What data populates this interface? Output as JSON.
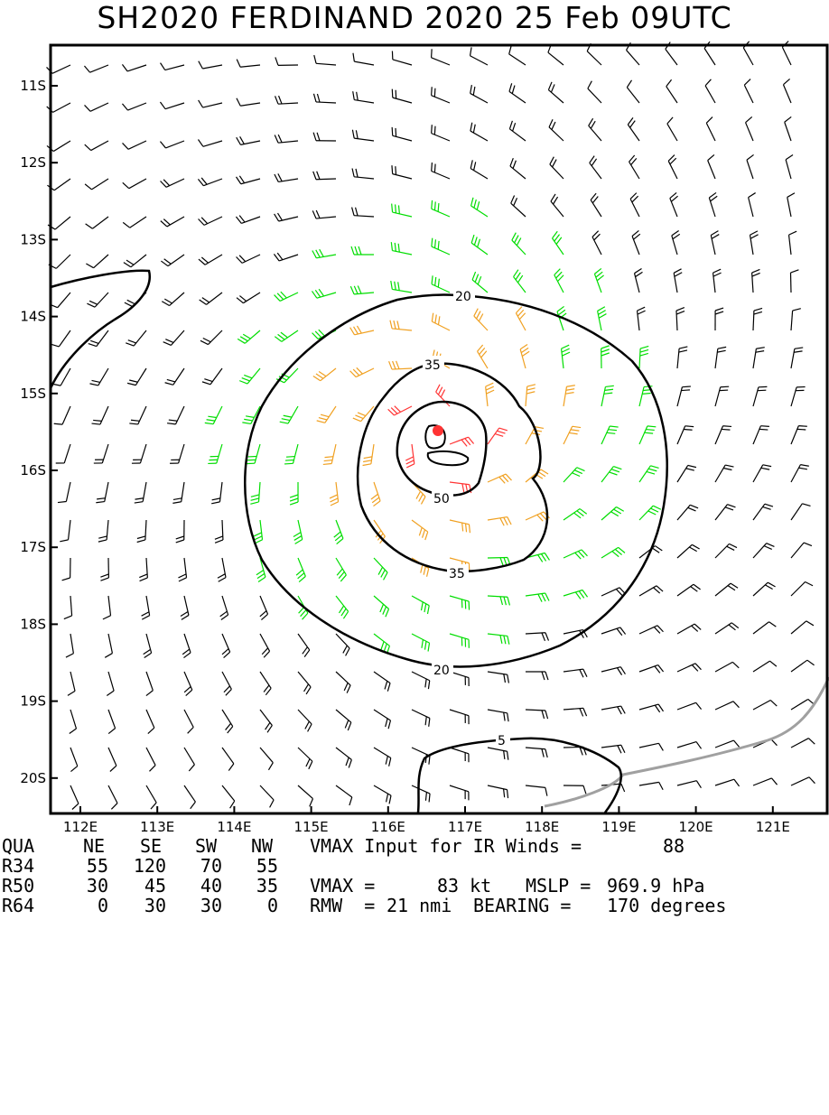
{
  "title": "SH2020  FERDINAND 2020 25 Feb 09UTC",
  "map": {
    "lat_labels": [
      "11S",
      "12S",
      "13S",
      "14S",
      "15S",
      "16S",
      "17S",
      "18S",
      "19S",
      "20S"
    ],
    "lon_labels": [
      "112E",
      "113E",
      "114E",
      "115E",
      "116E",
      "117E",
      "118E",
      "119E",
      "120E",
      "121E"
    ],
    "contour_labels": [
      "20",
      "35",
      "50",
      "35",
      "20",
      "5"
    ],
    "center_color": "#ff3333",
    "wind_colors": {
      "under34": "#000000",
      "r34": "#00dd00",
      "r50": "#f0a020",
      "r64": "#ff3333"
    }
  },
  "table": {
    "quadrant_header": {
      "label": "QUA",
      "ne": "NE",
      "se": "SE",
      "sw": "SW",
      "nw": "NW"
    },
    "r34": {
      "label": "R34",
      "ne": "55",
      "se": "120",
      "sw": "70",
      "nw": "55"
    },
    "r50": {
      "label": "R50",
      "ne": "30",
      "se": "45",
      "sw": "40",
      "nw": "35"
    },
    "r64": {
      "label": "R64",
      "ne": "0",
      "se": "30",
      "sw": "30",
      "nw": "0"
    },
    "vmax_input_label": "VMAX Input for IR Winds =",
    "vmax_input_value": "88",
    "vmax_label": "VMAX =",
    "vmax_value": "83 kt",
    "mslp_label": "MSLP =",
    "mslp_value": "969.9 hPa",
    "rmw_label": "RMW  =",
    "rmw_value": "21 nmi",
    "bearing_label": "BEARING =",
    "bearing_value": "170 degrees"
  }
}
